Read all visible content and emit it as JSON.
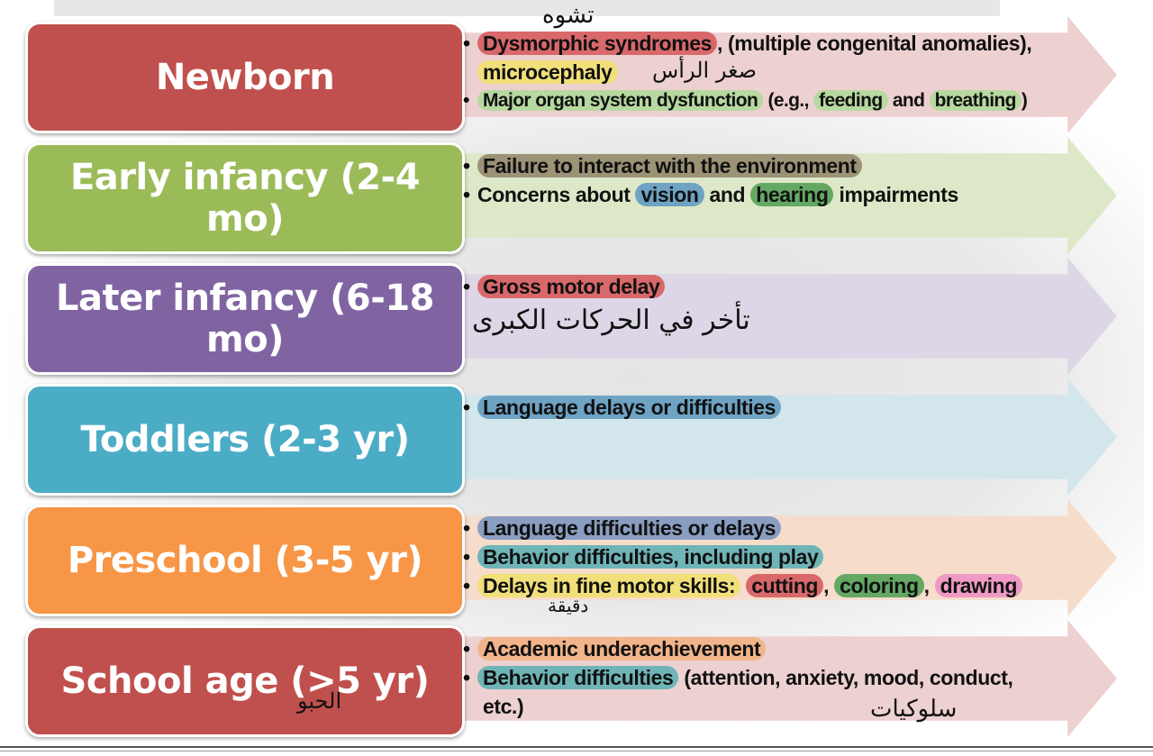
{
  "colors": {
    "newborn": "#c0504d",
    "early_infancy": "#9bbb59",
    "later_infancy": "#8064a2",
    "toddlers": "#4bacc6",
    "preschool": "#f79646",
    "school_age": "#c0504d"
  },
  "stages": [
    {
      "label": "Newborn",
      "bullets": [
        {
          "parts": [
            "Dysmorphic syndromes",
            ", (multiple congenital anomalies),"
          ],
          "line2": [
            "microcephaly"
          ]
        },
        {
          "parts": [
            "Major organ system dysfunction",
            " (e.g., ",
            "feeding",
            " and ",
            "breathing",
            ")"
          ]
        }
      ],
      "handwriting": [
        "تشوه",
        "صغر الرأس"
      ]
    },
    {
      "label": "Early infancy (2-4 mo)",
      "bullets": [
        {
          "parts": [
            "Failure to interact with the environment"
          ]
        },
        {
          "parts": [
            "Concerns about ",
            "vision",
            " and ",
            "hearing",
            " impairments"
          ]
        }
      ]
    },
    {
      "label": "Later infancy (6-18 mo)",
      "bullets": [
        {
          "parts": [
            "Gross motor delay"
          ]
        }
      ],
      "handwriting": [
        "تأخر في الحركات الكبرى"
      ]
    },
    {
      "label": "Toddlers (2-3 yr)",
      "bullets": [
        {
          "parts": [
            "Language delays or difficulties"
          ]
        }
      ]
    },
    {
      "label": "Preschool (3-5 yr)",
      "bullets": [
        {
          "parts": [
            "Language difficulties or delays"
          ]
        },
        {
          "parts": [
            "Behavior difficulties, including play"
          ]
        },
        {
          "parts": [
            "Delays in fine motor skills:",
            " ",
            "cutting",
            ", ",
            "coloring",
            ", ",
            "drawing"
          ]
        }
      ],
      "handwriting": [
        "دقيقة"
      ]
    },
    {
      "label": "School age (>5 yr)",
      "bullets": [
        {
          "parts": [
            "Academic underachievement"
          ]
        },
        {
          "parts": [
            "Behavior difficulties",
            " (attention, anxiety, mood, conduct,"
          ],
          "line2": [
            "etc.)"
          ]
        }
      ],
      "handwriting": [
        "الحبو",
        "سلوكيات"
      ]
    }
  ]
}
